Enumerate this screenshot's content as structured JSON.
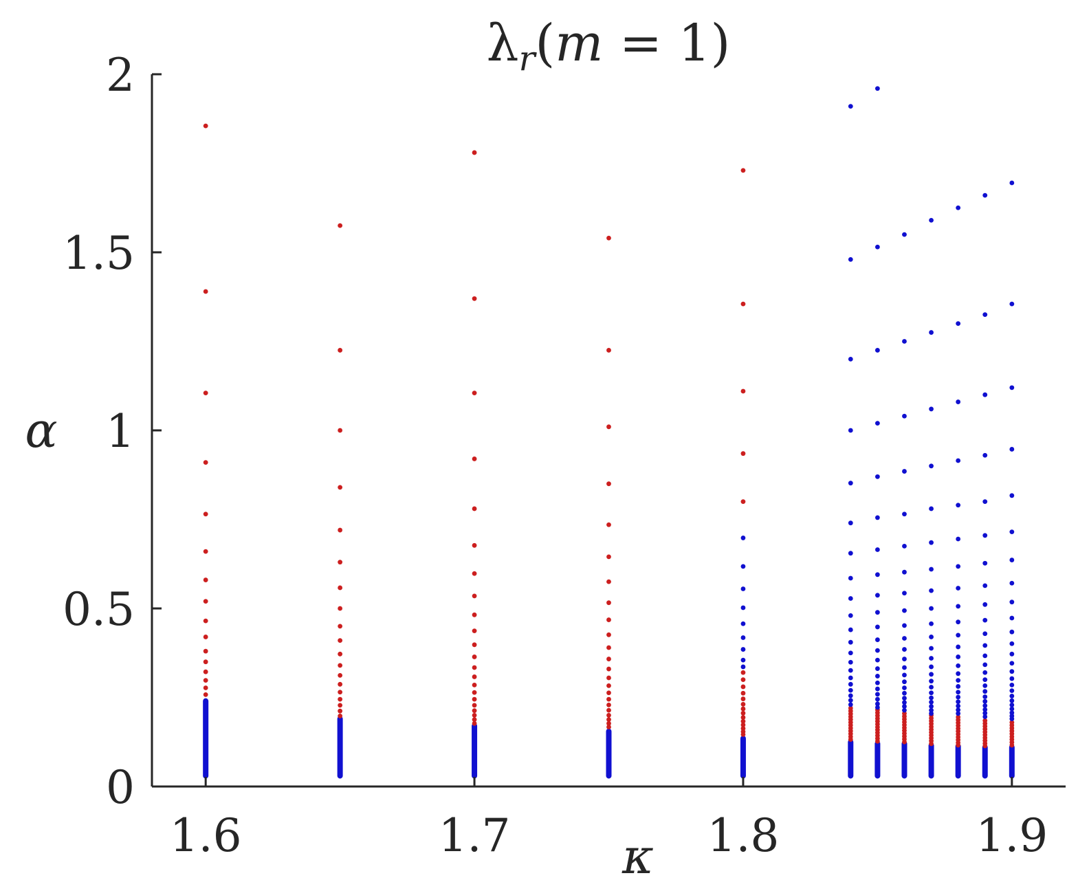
{
  "chart_data": {
    "type": "scatter",
    "title": "λ_r(m = 1)",
    "xlabel": "κ",
    "ylabel": "α",
    "xlim": [
      1.58,
      1.92
    ],
    "ylim": [
      0,
      2
    ],
    "xticks": [
      1.6,
      1.7,
      1.8,
      1.9
    ],
    "yticks": [
      0,
      0.5,
      1,
      1.5,
      2
    ],
    "xtick_labels": [
      "1.6",
      "1.7",
      "1.8",
      "1.9"
    ],
    "ytick_labels": [
      "0",
      "0.5",
      "1",
      "1.5",
      "2"
    ],
    "grid": false,
    "legend": "none",
    "colors": {
      "red": "#cc1f1f",
      "blue": "#1010d0",
      "axis": "#262626"
    },
    "columns": [
      {
        "kappa": 1.6,
        "blue_dense": [
          0.03,
          0.24
        ],
        "red_points": [
          1.855,
          1.39,
          1.105,
          0.91,
          0.765,
          0.66,
          0.58,
          0.52,
          0.465,
          0.42,
          0.38,
          0.35,
          0.322,
          0.298,
          0.277,
          0.258
        ],
        "blue_points": []
      },
      {
        "kappa": 1.65,
        "blue_dense": [
          0.03,
          0.19
        ],
        "red_points": [
          1.575,
          1.225,
          1.0,
          0.84,
          0.72,
          0.63,
          0.558,
          0.5,
          0.45,
          0.41,
          0.372,
          0.34,
          0.312,
          0.287,
          0.265,
          0.245,
          0.228,
          0.212,
          0.198
        ],
        "blue_points": []
      },
      {
        "kappa": 1.7,
        "blue_dense": [
          0.03,
          0.17
        ],
        "red_points": [
          1.78,
          1.37,
          1.105,
          0.92,
          0.78,
          0.677,
          0.598,
          0.535,
          0.482,
          0.437,
          0.398,
          0.364,
          0.334,
          0.308,
          0.285,
          0.264,
          0.245,
          0.228,
          0.213,
          0.2,
          0.188,
          0.177
        ],
        "blue_points": []
      },
      {
        "kappa": 1.75,
        "blue_dense": [
          0.03,
          0.155
        ],
        "red_points": [
          1.54,
          1.225,
          1.01,
          0.85,
          0.735,
          0.645,
          0.575,
          0.516,
          0.468,
          0.426,
          0.39,
          0.358,
          0.33,
          0.305,
          0.283,
          0.263,
          0.245,
          0.229,
          0.214,
          0.2,
          0.188,
          0.177,
          0.167
        ],
        "blue_points": []
      },
      {
        "kappa": 1.8,
        "blue_dense": [
          0.03,
          0.135
        ],
        "red_points": [
          1.73,
          1.355,
          1.11,
          0.935,
          0.8,
          0.32,
          0.3,
          0.28,
          0.262,
          0.246,
          0.231,
          0.218,
          0.206,
          0.194,
          0.183,
          0.173,
          0.163,
          0.154,
          0.146
        ],
        "blue_points": [
          0.698,
          0.618,
          0.555,
          0.502,
          0.457,
          0.418,
          0.385,
          0.355,
          0.336
        ]
      },
      {
        "kappa": 1.84,
        "blue_dense": [
          0.03,
          0.125
        ],
        "red_points": [
          0.22,
          0.212,
          0.204,
          0.196,
          0.188,
          0.18,
          0.172,
          0.164,
          0.156,
          0.148,
          0.14,
          0.132
        ],
        "blue_points": [
          1.91,
          1.48,
          1.2,
          1.0,
          0.852,
          0.74,
          0.655,
          0.585,
          0.528,
          0.48,
          0.44,
          0.405,
          0.375,
          0.349,
          0.326,
          0.305,
          0.287,
          0.27,
          0.255,
          0.242,
          0.23
        ]
      },
      {
        "kappa": 1.85,
        "blue_dense": [
          0.03,
          0.12
        ],
        "red_points": [
          0.215,
          0.207,
          0.199,
          0.191,
          0.183,
          0.175,
          0.167,
          0.159,
          0.151,
          0.143,
          0.135,
          0.127
        ],
        "blue_points": [
          1.96,
          1.515,
          1.225,
          1.02,
          0.87,
          0.755,
          0.665,
          0.595,
          0.537,
          0.489,
          0.448,
          0.412,
          0.382,
          0.355,
          0.331,
          0.31,
          0.291,
          0.274,
          0.259,
          0.245,
          0.232,
          0.222
        ]
      },
      {
        "kappa": 1.86,
        "blue_dense": [
          0.03,
          0.12
        ],
        "red_points": [
          0.205,
          0.197,
          0.189,
          0.181,
          0.173,
          0.165,
          0.157,
          0.149,
          0.141,
          0.133,
          0.125
        ],
        "blue_points": [
          1.55,
          1.25,
          1.04,
          0.885,
          0.765,
          0.675,
          0.602,
          0.543,
          0.494,
          0.452,
          0.416,
          0.385,
          0.358,
          0.334,
          0.313,
          0.294,
          0.277,
          0.262,
          0.248,
          0.236,
          0.225,
          0.214
        ]
      },
      {
        "kappa": 1.87,
        "blue_dense": [
          0.03,
          0.115
        ],
        "red_points": [
          0.2,
          0.192,
          0.184,
          0.176,
          0.168,
          0.16,
          0.152,
          0.144,
          0.136,
          0.128,
          0.12
        ],
        "blue_points": [
          1.59,
          1.275,
          1.06,
          0.9,
          0.78,
          0.685,
          0.61,
          0.55,
          0.5,
          0.457,
          0.42,
          0.388,
          0.36,
          0.336,
          0.315,
          0.296,
          0.279,
          0.263,
          0.249,
          0.237,
          0.225,
          0.214,
          0.205
        ]
      },
      {
        "kappa": 1.88,
        "blue_dense": [
          0.03,
          0.113
        ],
        "red_points": [
          0.195,
          0.187,
          0.179,
          0.171,
          0.163,
          0.155,
          0.147,
          0.139,
          0.131,
          0.123,
          0.116
        ],
        "blue_points": [
          1.625,
          1.3,
          1.08,
          0.915,
          0.79,
          0.695,
          0.618,
          0.557,
          0.506,
          0.462,
          0.425,
          0.392,
          0.364,
          0.339,
          0.317,
          0.298,
          0.281,
          0.265,
          0.251,
          0.238,
          0.226,
          0.215,
          0.205
        ]
      },
      {
        "kappa": 1.89,
        "blue_dense": [
          0.03,
          0.11
        ],
        "red_points": [
          0.185,
          0.177,
          0.169,
          0.161,
          0.153,
          0.145,
          0.137,
          0.129,
          0.121,
          0.114
        ],
        "blue_points": [
          1.66,
          1.325,
          1.1,
          0.93,
          0.8,
          0.705,
          0.627,
          0.564,
          0.511,
          0.467,
          0.429,
          0.396,
          0.367,
          0.342,
          0.32,
          0.3,
          0.283,
          0.267,
          0.252,
          0.239,
          0.227,
          0.216,
          0.206,
          0.196
        ]
      },
      {
        "kappa": 1.9,
        "blue_dense": [
          0.03,
          0.11
        ],
        "red_points": [
          0.18,
          0.172,
          0.164,
          0.156,
          0.148,
          0.14,
          0.132,
          0.124,
          0.116
        ],
        "blue_points": [
          1.695,
          1.355,
          1.12,
          0.947,
          0.817,
          0.715,
          0.636,
          0.571,
          0.518,
          0.473,
          0.434,
          0.401,
          0.372,
          0.346,
          0.323,
          0.303,
          0.285,
          0.269,
          0.254,
          0.241,
          0.229,
          0.218,
          0.207,
          0.198,
          0.19
        ]
      }
    ]
  }
}
